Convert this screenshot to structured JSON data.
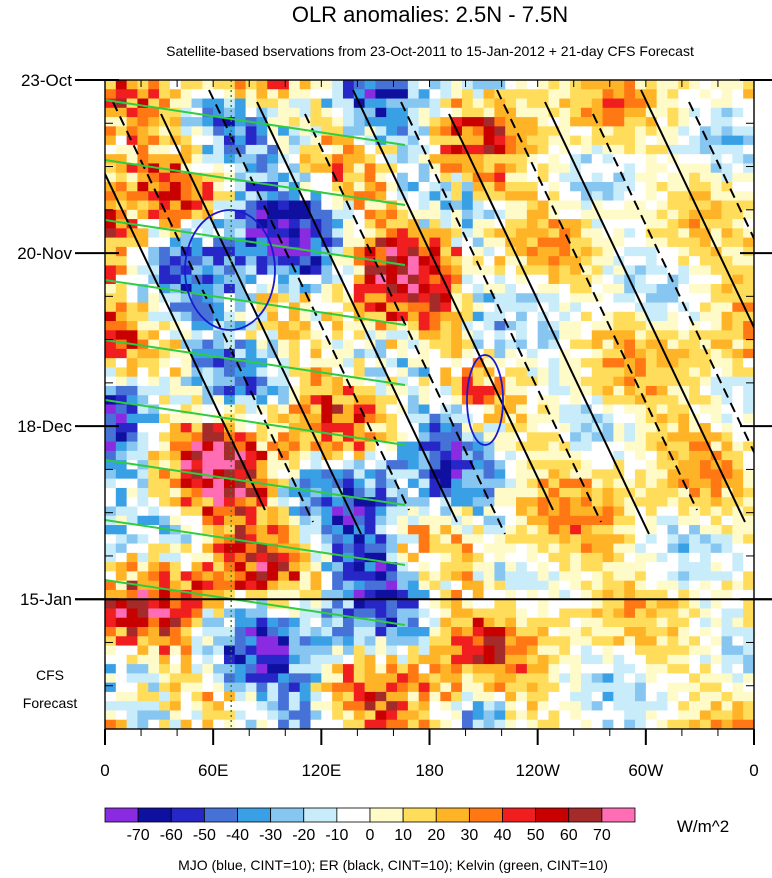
{
  "chart_data": {
    "type": "heatmap",
    "title": "OLR anomalies: 2.5N - 7.5N",
    "subtitle": "Satellite-based bservations from 23-Oct-2011 to 15-Jan-2012 + 21-day CFS Forecast",
    "forecast_label_line1": "CFS",
    "forecast_label_line2": "Forecast",
    "x_ticks": [
      {
        "label": "0",
        "lon": 0
      },
      {
        "label": "60E",
        "lon": 60
      },
      {
        "label": "120E",
        "lon": 120
      },
      {
        "label": "180",
        "lon": 180
      },
      {
        "label": "120W",
        "lon": 240
      },
      {
        "label": "60W",
        "lon": 300
      },
      {
        "label": "0",
        "lon": 360
      }
    ],
    "y_ticks": [
      {
        "label": "23-Oct",
        "day": 0
      },
      {
        "label": "20-Nov",
        "day": 28
      },
      {
        "label": "18-Dec",
        "day": 56
      },
      {
        "label": "15-Jan",
        "day": 84
      }
    ],
    "xlim": [
      0,
      360
    ],
    "ylim_days": [
      0,
      105
    ],
    "forecast_start_day": 84,
    "colorbar": {
      "unit": "W/m^2",
      "labels": [
        "-70",
        "-60",
        "-50",
        "-40",
        "-30",
        "-20",
        "-10",
        "0",
        "10",
        "20",
        "30",
        "40",
        "50",
        "60",
        "70"
      ],
      "colors": [
        "#8a2be2",
        "#1010a0",
        "#2727c8",
        "#4672d8",
        "#3aa0e6",
        "#87c6f0",
        "#c8ecfa",
        "#ffffff",
        "#fffbc8",
        "#ffdc5a",
        "#ffb428",
        "#ff7814",
        "#f01e1e",
        "#c80000",
        "#a52a2a",
        "#ff6eb4"
      ]
    },
    "legend_text": "MJO (blue, CINT=10); ER (black, CINT=10); Kelvin (green, CINT=10)",
    "reference_line_lon": 70
  }
}
